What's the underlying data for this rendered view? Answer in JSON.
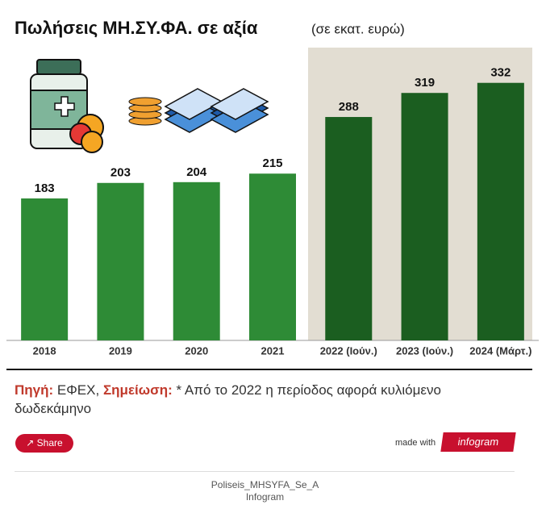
{
  "chart_data": {
    "type": "bar",
    "title": "Πωλήσεις ΜΗ.ΣΥ.ΦΑ. σε αξία",
    "subtitle": "(σε εκατ. ευρώ)",
    "categories": [
      "2018",
      "2019",
      "2020",
      "2021",
      "2022 (Ιούν.)",
      "2023 (Ιούν.)",
      "2024 (Μάρτ.)"
    ],
    "values": [
      183,
      203,
      204,
      215,
      288,
      319,
      332
    ],
    "colors": [
      "#2e8b36",
      "#2e8b36",
      "#2e8b36",
      "#2e8b36",
      "#1b5e20",
      "#1b5e20",
      "#1b5e20"
    ]
  },
  "footer": {
    "source_label": "Πηγή:",
    "source": "ΕΦΕΧ,",
    "note_label": "Σημείωση:",
    "note": "* Από το 2022 η περίοδος αφορά κυλιόμενο δωδεκάμηνο"
  },
  "share": "Share",
  "made_with": "made with",
  "brand": "infogram",
  "file_name": "Poliseis_MHSYFA_Se_A",
  "provider": "Infogram"
}
